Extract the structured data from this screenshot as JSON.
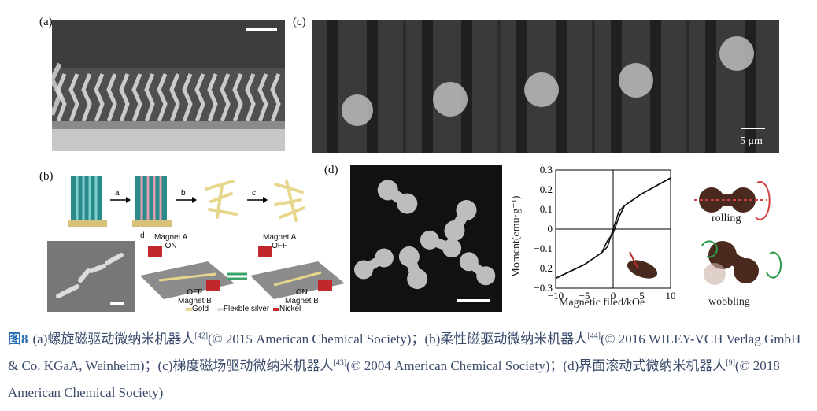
{
  "panels": {
    "a": {
      "label": "(a)"
    },
    "b": {
      "label": "(b)",
      "arrows": [
        "a",
        "b",
        "c"
      ],
      "sub_label": "d",
      "magnet_a_on": [
        "Magnet A",
        "ON"
      ],
      "magnet_a_off": [
        "Magnet A",
        "OFF"
      ],
      "magnet_b_off": [
        "OFF",
        "Magnet B"
      ],
      "magnet_b_on": [
        "ON",
        "Magnet B"
      ],
      "legend": [
        "Gold",
        "Flexble silver",
        "Nickel"
      ]
    },
    "c": {
      "label": "(c)",
      "scalebar": "5 μm"
    },
    "d": {
      "label": "(d)",
      "rolling": "rolling",
      "wobbling": "wobbling"
    }
  },
  "chart_data": {
    "type": "line",
    "xlabel": "Magnetic filed/kOe",
    "ylabel": "Moment(emu·g⁻¹)",
    "xlim": [
      -10,
      10
    ],
    "ylim": [
      -0.3,
      0.3
    ],
    "xticks": [
      "−10",
      "−5",
      "0",
      "5",
      "10"
    ],
    "yticks": [
      "0.3",
      "0.2",
      "0.1",
      "0",
      "−0.1",
      "−0.2",
      "−0.3"
    ],
    "series": [
      {
        "values": [
          [
            -10,
            -0.25
          ],
          [
            -5,
            -0.18
          ],
          [
            -2,
            -0.12
          ],
          [
            -1,
            -0.09
          ],
          [
            0,
            0.0
          ],
          [
            1,
            0.09
          ],
          [
            2,
            0.12
          ],
          [
            5,
            0.18
          ],
          [
            10,
            0.26
          ]
        ]
      },
      {
        "values": [
          [
            -10,
            -0.25
          ],
          [
            -5,
            -0.18
          ],
          [
            -2,
            -0.12
          ],
          [
            -1,
            -0.06
          ],
          [
            0,
            -0.02
          ],
          [
            1,
            0.06
          ],
          [
            2,
            0.12
          ],
          [
            5,
            0.18
          ],
          [
            10,
            0.26
          ]
        ]
      }
    ]
  },
  "caption": {
    "fig": "图8",
    "text": [
      {
        "t": "(a)螺旋磁驱动微纳米机器人"
      },
      {
        "sup": "[42]"
      },
      {
        "t": "(© 2015 American Chemical Society)；(b)柔性磁驱动微纳米机器人"
      },
      {
        "sup": "[44]"
      },
      {
        "t": "(© 2016 WILEY-VCH Verlag GmbH & Co. KGaA, Weinheim)；(c)梯度磁场驱动微纳米机器人"
      },
      {
        "sup": "[43]"
      },
      {
        "t": "(© 2004 American Chemical Society)；(d)界面滚动式微纳米机器人"
      },
      {
        "sup": "[9]"
      },
      {
        "t": "(© 2018 American Chemical Society)"
      }
    ]
  },
  "colors": {
    "caption": "#3a4a6b",
    "fig": "#2a6db3",
    "bar": "#2b8a8a",
    "magnet": "#c0282d"
  }
}
